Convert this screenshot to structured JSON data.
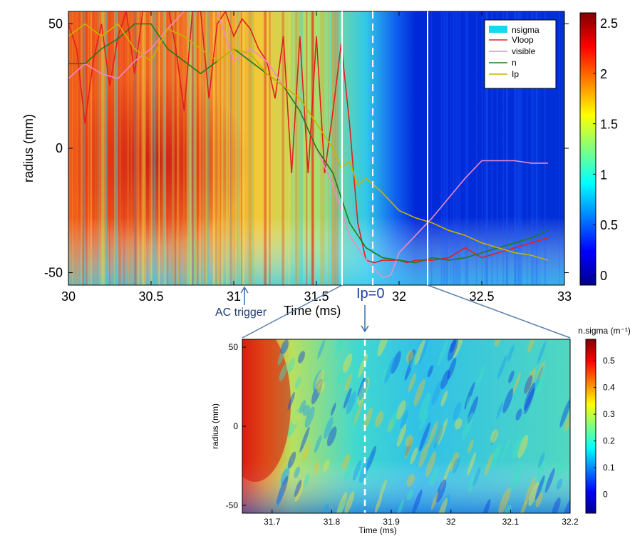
{
  "chart_data": [
    {
      "type": "heatmap",
      "xlabel": "Time (ms)",
      "ylabel": "radius (mm)",
      "xlim": [
        30,
        33
      ],
      "ylim": [
        -55,
        55
      ],
      "xticks": [
        "30",
        "30.5",
        "31",
        "31.5",
        "32",
        "32.5",
        "33"
      ],
      "yticks": [
        "-50",
        "0",
        "50"
      ],
      "colorbar": {
        "range": [
          -0.1,
          2.6
        ],
        "ticks": [
          "0",
          "0.5",
          "1",
          "1.5",
          "2",
          "2.5"
        ]
      },
      "legend": {
        "position": "top-right",
        "entries": [
          "nsigma",
          "Vloop",
          "visible",
          "n",
          "Ip"
        ]
      },
      "series": [
        {
          "name": "Vloop",
          "color": "#e02020",
          "x": [
            30.0,
            30.05,
            30.1,
            30.15,
            30.2,
            30.25,
            30.3,
            30.35,
            30.4,
            30.45,
            30.5,
            30.55,
            30.6,
            30.65,
            30.7,
            30.75,
            30.8,
            30.85,
            30.9,
            30.95,
            31.0,
            31.05,
            31.1,
            31.15,
            31.2,
            31.25,
            31.3,
            31.35,
            31.4,
            31.45,
            31.5,
            31.55,
            31.6,
            31.65,
            31.7,
            31.75,
            31.8,
            31.85,
            31.9,
            31.95,
            32.0,
            32.05,
            32.1,
            32.2,
            32.3,
            32.4,
            32.5,
            32.6,
            32.7,
            32.8,
            32.9
          ],
          "y": [
            50,
            40,
            10,
            35,
            50,
            25,
            45,
            55,
            30,
            55,
            55,
            58,
            58,
            40,
            15,
            55,
            55,
            20,
            50,
            55,
            45,
            52,
            48,
            40,
            35,
            20,
            45,
            -10,
            45,
            -10,
            45,
            -10,
            15,
            42,
            10,
            -30,
            -45,
            -46,
            -45,
            -45,
            -45,
            -46,
            -45,
            -45,
            -44,
            -40,
            -44,
            -42,
            -40,
            -38,
            -36
          ]
        },
        {
          "name": "visible",
          "color": "#f08ac8",
          "x": [
            30.0,
            30.1,
            30.2,
            30.3,
            30.4,
            30.5,
            30.6,
            30.7,
            30.8,
            30.9,
            31.0,
            31.1,
            31.2,
            31.3,
            31.4,
            31.5,
            31.6,
            31.65,
            31.7,
            31.75,
            31.8,
            31.9,
            31.95,
            32.0,
            32.1,
            32.2,
            32.3,
            32.4,
            32.5,
            32.6,
            32.7,
            32.8,
            32.9
          ],
          "y": [
            28,
            34,
            30,
            28,
            35,
            40,
            48,
            55,
            58,
            55,
            35,
            40,
            35,
            25,
            15,
            0,
            -15,
            -25,
            -35,
            -40,
            -45,
            -52,
            -51,
            -42,
            -35,
            -28,
            -20,
            -12,
            -5,
            -5,
            -5,
            -6,
            -6
          ]
        },
        {
          "name": "n",
          "color": "#1f7a1f",
          "x": [
            30.0,
            30.1,
            30.2,
            30.3,
            30.4,
            30.5,
            30.6,
            30.7,
            30.8,
            30.9,
            31.0,
            31.1,
            31.2,
            31.3,
            31.4,
            31.5,
            31.6,
            31.7,
            31.8,
            31.9,
            32.0,
            32.1,
            32.2,
            32.3,
            32.4,
            32.5,
            32.6,
            32.7,
            32.8,
            32.9
          ],
          "y": [
            34,
            34,
            40,
            44,
            50,
            50,
            40,
            35,
            30,
            35,
            40,
            35,
            30,
            25,
            15,
            0,
            -10,
            -30,
            -40,
            -44,
            -45,
            -46,
            -44,
            -45,
            -44,
            -42,
            -40,
            -38,
            -36,
            -33
          ]
        },
        {
          "name": "Ip",
          "color": "#c8b400",
          "x": [
            30.0,
            30.1,
            30.2,
            30.3,
            30.4,
            30.5,
            30.6,
            30.7,
            30.8,
            30.9,
            31.0,
            31.1,
            31.2,
            31.3,
            31.4,
            31.5,
            31.6,
            31.65,
            31.7,
            31.75,
            31.8,
            31.9,
            32.0,
            32.1,
            32.2,
            32.3,
            32.4,
            32.5,
            32.6,
            32.7,
            32.8,
            32.9
          ],
          "y": [
            45,
            50,
            45,
            50,
            40,
            35,
            48,
            45,
            40,
            35,
            40,
            38,
            30,
            25,
            20,
            10,
            0,
            -8,
            -5,
            -15,
            -12,
            -18,
            -25,
            -28,
            -30,
            -33,
            -35,
            -38,
            -40,
            -42,
            -43,
            -45
          ]
        }
      ],
      "annotations": [
        "AC trigger",
        "Ip=0"
      ]
    },
    {
      "type": "heatmap",
      "xlabel": "Time (ms)",
      "ylabel": "radius (mm)",
      "xlim": [
        31.65,
        32.2
      ],
      "ylim": [
        -55,
        55
      ],
      "xticks": [
        "31.7",
        "31.8",
        "31.9",
        "32",
        "32.1",
        "32.2"
      ],
      "yticks": [
        "-50",
        "0",
        "50"
      ],
      "colorbar": {
        "label": "n.sigma (m⁻¹)",
        "range": [
          -0.07,
          0.58
        ],
        "ticks": [
          "0",
          "0.1",
          "0.2",
          "0.3",
          "0.4",
          "0.5"
        ]
      }
    }
  ]
}
